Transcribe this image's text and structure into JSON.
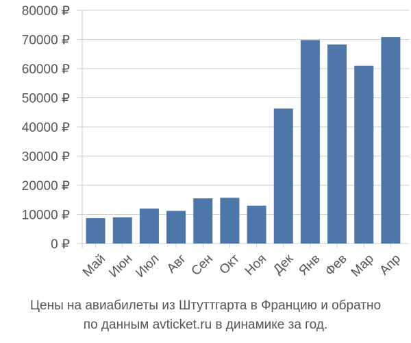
{
  "chart_data": {
    "type": "bar",
    "categories": [
      "Май",
      "Июн",
      "Июл",
      "Авг",
      "Сен",
      "Окт",
      "Ноя",
      "Дек",
      "Янв",
      "Фев",
      "Мар",
      "Апр"
    ],
    "values": [
      8700,
      9000,
      12000,
      11200,
      15500,
      15700,
      13000,
      46300,
      69800,
      68300,
      61000,
      70800
    ],
    "title": "",
    "xlabel": "",
    "ylabel": "",
    "ylim": [
      0,
      80000
    ],
    "y_ticks": [
      0,
      10000,
      20000,
      30000,
      40000,
      50000,
      60000,
      70000,
      80000
    ],
    "y_tick_labels": [
      "0 ₽",
      "10000 ₽",
      "20000 ₽",
      "30000 ₽",
      "40000 ₽",
      "50000 ₽",
      "60000 ₽",
      "70000 ₽",
      "80000 ₽"
    ],
    "grid": true,
    "legend": "none",
    "bar_color": "#4e76a8",
    "grid_color": "#cccccc"
  },
  "caption": {
    "line1": "Цены на авиабилеты из Штуттгарта в Францию и обратно",
    "line2": "по данным avticket.ru в динамике за год."
  }
}
